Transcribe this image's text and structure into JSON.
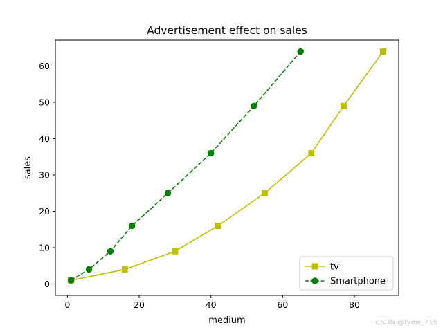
{
  "watermark": "CSDN @fydw_715",
  "chart_data": {
    "type": "line",
    "title": "Advertisement effect on sales",
    "xlabel": "medium",
    "ylabel": "sales",
    "xlim": [
      -3.35,
      92.35
    ],
    "ylim": [
      -3.15,
      67.15
    ],
    "xticks": [
      0,
      20,
      40,
      60,
      80
    ],
    "yticks": [
      0,
      10,
      20,
      30,
      40,
      50,
      60
    ],
    "grid": false,
    "legend_position": "lower-right",
    "series": [
      {
        "name": "tv",
        "color": "#bfbf00",
        "marker": "square",
        "linestyle": "solid",
        "x": [
          1,
          16,
          30,
          42,
          55,
          68,
          77,
          88
        ],
        "y": [
          1,
          4,
          9,
          16,
          25,
          36,
          49,
          64
        ]
      },
      {
        "name": "Smartphone",
        "color": "#008000",
        "marker": "circle",
        "linestyle": "dashed",
        "x": [
          1,
          6,
          12,
          18,
          28,
          40,
          52,
          65
        ],
        "y": [
          1,
          4,
          9,
          16,
          25,
          36,
          49,
          64
        ]
      }
    ]
  }
}
